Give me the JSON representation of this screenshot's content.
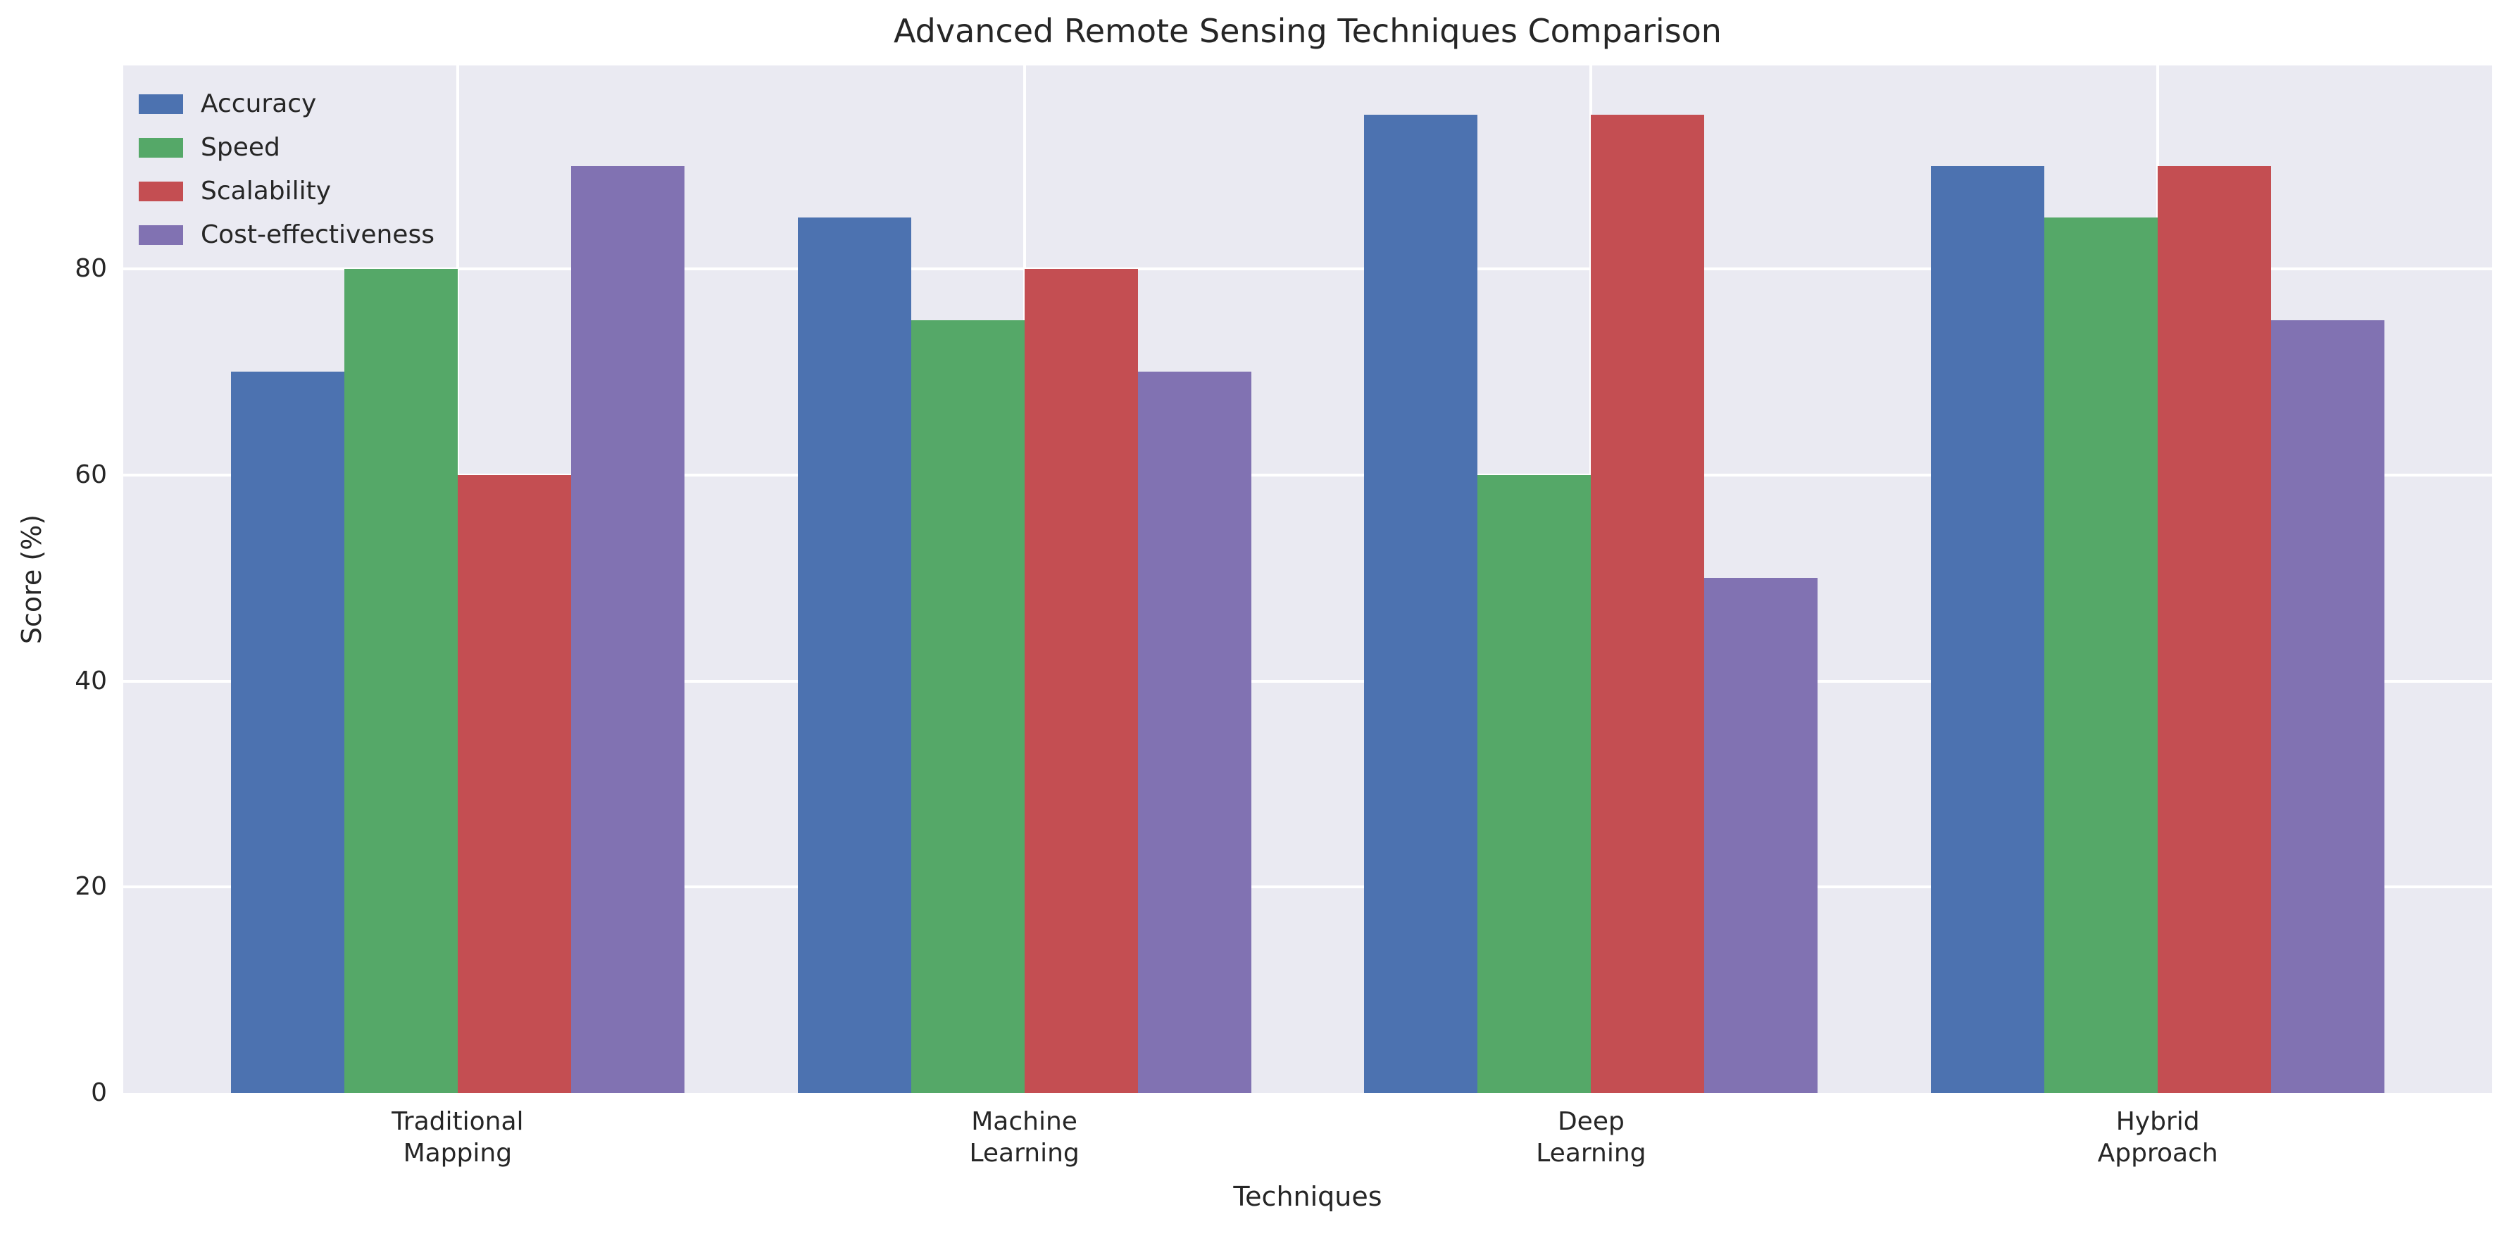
{
  "chart_data": {
    "type": "bar",
    "title": "Advanced Remote Sensing Techniques Comparison",
    "xlabel": "Techniques",
    "ylabel": "Score (%)",
    "categories": [
      "Traditional\nMapping",
      "Machine\nLearning",
      "Deep\nLearning",
      "Hybrid\nApproach"
    ],
    "series": [
      {
        "name": "Accuracy",
        "color": "#4C72B0",
        "values": [
          70,
          85,
          95,
          90
        ]
      },
      {
        "name": "Speed",
        "color": "#55A868",
        "values": [
          80,
          75,
          60,
          85
        ]
      },
      {
        "name": "Scalability",
        "color": "#C44E52",
        "values": [
          60,
          80,
          95,
          90
        ]
      },
      {
        "name": "Cost-effectiveness",
        "color": "#8172B2",
        "values": [
          90,
          70,
          50,
          75
        ]
      }
    ],
    "ylim": [
      0,
      99.75
    ],
    "yticks": [
      0,
      20,
      40,
      60,
      80
    ],
    "grid": true,
    "grid_color": "#FFFFFF",
    "legend_position": "upper left",
    "plot_bg": "#EAEAF2",
    "fig_bg": "#FFFFFF",
    "text_color": "#262626"
  }
}
